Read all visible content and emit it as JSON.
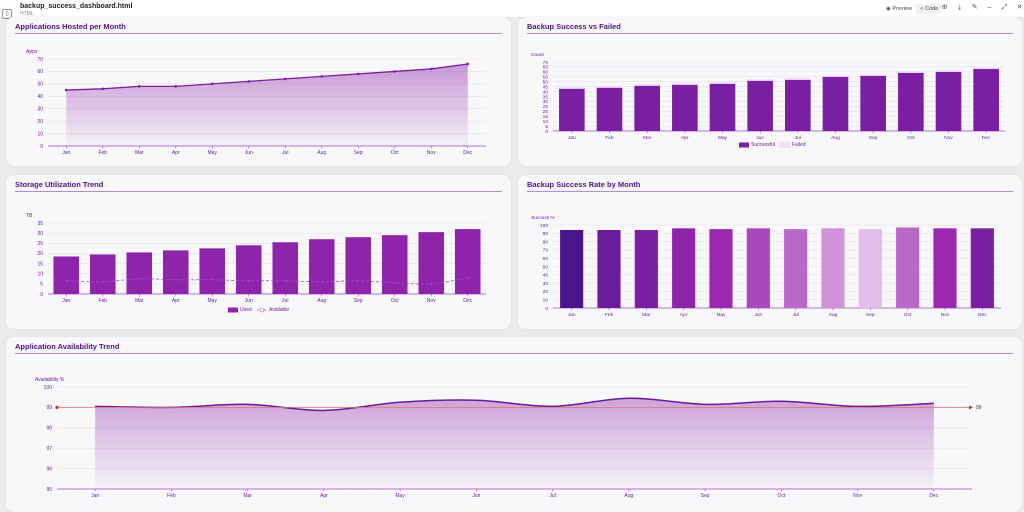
{
  "window": {
    "filename": "backup_success_dashboard.html",
    "filetype": "HTML",
    "preview_label": "Preview",
    "code_label": "Code"
  },
  "colors": {
    "accent": "#7b1fa2",
    "title": "#4a148c",
    "text": "#6a1b9a",
    "threshold": "#e57373"
  },
  "months": [
    "Jan",
    "Feb",
    "Mar",
    "Apr",
    "May",
    "Jun",
    "Jul",
    "Aug",
    "Sep",
    "Oct",
    "Nov",
    "Dec"
  ],
  "chart_data": [
    {
      "id": "apps",
      "type": "area",
      "title": "Applications Hosted per Month",
      "ylabel": "Apps",
      "ylim": [
        0,
        70
      ],
      "yticks": [
        0,
        10,
        20,
        30,
        40,
        50,
        60,
        70
      ],
      "values": [
        45,
        46,
        48,
        48,
        50,
        52,
        54,
        56,
        58,
        60,
        62,
        66
      ]
    },
    {
      "id": "backup",
      "type": "bar",
      "title": "Backup Success vs Failed",
      "ylabel": "Count",
      "ylim": [
        0,
        70
      ],
      "yticks": [
        0,
        5,
        10,
        15,
        20,
        25,
        30,
        35,
        40,
        45,
        50,
        55,
        60,
        65,
        70
      ],
      "series": [
        {
          "name": "Successful",
          "color": "#7b1fa2",
          "values": [
            43,
            44,
            46,
            47,
            48,
            51,
            52,
            55,
            56,
            59,
            60,
            63
          ]
        },
        {
          "name": "Failed",
          "color": "#f3e5f5",
          "values": [
            1,
            1,
            1,
            1,
            1,
            1,
            1,
            1,
            1,
            1,
            1,
            1
          ]
        }
      ],
      "legend": "bottom"
    },
    {
      "id": "storage",
      "type": "bar",
      "title": "Storage Utilization Trend",
      "ylabel": "TB",
      "ylim": [
        0,
        35
      ],
      "yticks": [
        0,
        5,
        10,
        15,
        20,
        25,
        30,
        35
      ],
      "series": [
        {
          "name": "Used",
          "color": "#8e24aa",
          "values": [
            18.5,
            19.5,
            20.5,
            21.5,
            22.5,
            24,
            25.5,
            27,
            28,
            29,
            30.5,
            32
          ]
        },
        {
          "name": "Available",
          "color": "#8e24aa",
          "values": [
            6.5,
            6,
            7.5,
            7,
            7,
            6.5,
            6.5,
            6,
            6.5,
            5.5,
            5,
            8
          ]
        }
      ],
      "legend": "bottom"
    },
    {
      "id": "rate",
      "type": "bar",
      "title": "Backup Success Rate by Month",
      "ylabel": "Success %",
      "ylim": [
        0,
        100
      ],
      "yticks": [
        0,
        10,
        20,
        30,
        40,
        50,
        60,
        70,
        80,
        90,
        100
      ],
      "values": [
        94,
        94,
        94,
        96,
        95,
        96,
        95,
        96,
        95,
        97,
        96,
        96
      ],
      "colors": [
        "#4a148c",
        "#6a1b9a",
        "#7b1fa2",
        "#8e24aa",
        "#9c27b0",
        "#ab47bc",
        "#ba68c8",
        "#ce93d8",
        "#e1bee7",
        "#ba68c8",
        "#9c27b0",
        "#7b1fa2"
      ]
    },
    {
      "id": "availability",
      "type": "area",
      "title": "Application Availability Trend",
      "ylabel": "Availability %",
      "ylim": [
        95,
        100
      ],
      "yticks": [
        95,
        96,
        97,
        98,
        99,
        100
      ],
      "values": [
        99.05,
        99.0,
        99.15,
        98.85,
        99.25,
        99.35,
        99.05,
        99.45,
        99.15,
        99.3,
        99.05,
        99.2
      ],
      "threshold": {
        "value": 99,
        "label": "99"
      }
    }
  ]
}
